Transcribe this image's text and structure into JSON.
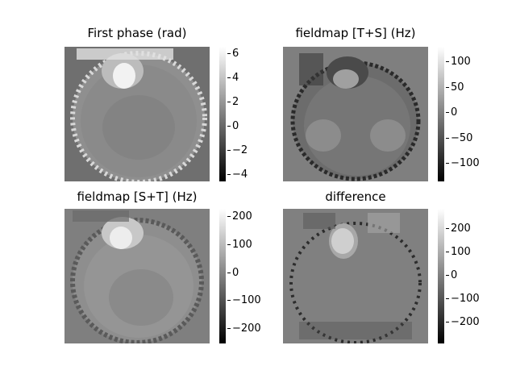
{
  "panels": [
    {
      "title": "First phase (rad)",
      "ticks": [
        "6",
        "4",
        "2",
        "0",
        "−2",
        "−4"
      ],
      "tick_values": [
        6,
        4,
        2,
        0,
        -2,
        -4
      ],
      "range": [
        -4.5,
        6.5
      ]
    },
    {
      "title": "fieldmap [T+S] (Hz)",
      "ticks": [
        "100",
        "50",
        "0",
        "−50",
        "−100"
      ],
      "tick_values": [
        100,
        50,
        0,
        -50,
        -100
      ],
      "range": [
        -135,
        130
      ]
    },
    {
      "title": "fieldmap [S+T] (Hz)",
      "ticks": [
        "200",
        "100",
        "0",
        "−100",
        "−200"
      ],
      "tick_values": [
        200,
        100,
        0,
        -100,
        -200
      ],
      "range": [
        -255,
        225
      ]
    },
    {
      "title": "difference",
      "ticks": [
        "200",
        "100",
        "0",
        "−100",
        "−200"
      ],
      "tick_values": [
        200,
        100,
        0,
        -100,
        -200
      ],
      "range": [
        -285,
        285
      ]
    }
  ]
}
